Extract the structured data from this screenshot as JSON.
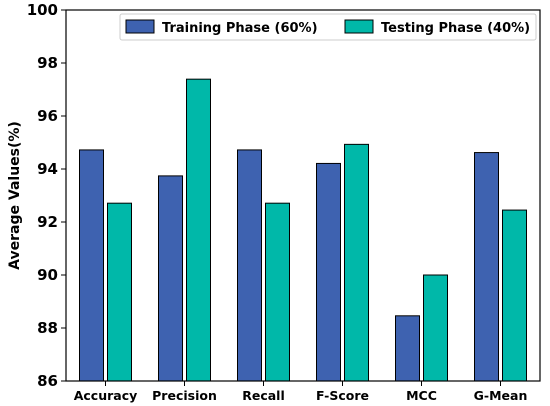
{
  "chart_data": {
    "type": "bar",
    "title": "",
    "xlabel": "",
    "ylabel": "Average Values(%)",
    "ylim": [
      86,
      100
    ],
    "yticks": [
      86,
      88,
      90,
      92,
      94,
      96,
      98,
      100
    ],
    "grid": false,
    "legend_position": "top-right",
    "categories": [
      "Accuracy",
      "Precision",
      "Recall",
      "F-Score",
      "MCC",
      "G-Mean"
    ],
    "series": [
      {
        "name": "Training Phase (60%)",
        "color": "#3e62b0",
        "values": [
          94.72,
          93.74,
          94.72,
          94.21,
          88.46,
          94.62
        ]
      },
      {
        "name": "Testing Phase (40%)",
        "color": "#00b8a9",
        "values": [
          92.71,
          97.39,
          92.71,
          94.93,
          90.0,
          92.45
        ]
      }
    ]
  }
}
